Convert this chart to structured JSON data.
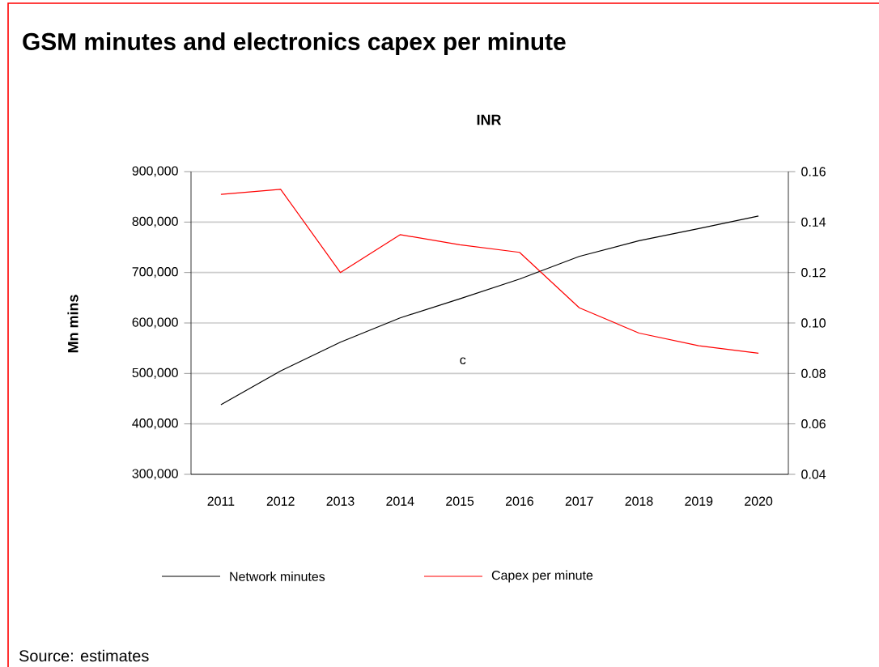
{
  "chart_data": {
    "type": "line",
    "title": "GSM minutes and electronics capex per minute",
    "subtitle": "INR",
    "ylabel": "Mn mins",
    "annotations": [
      "c",
      "Source: estimates"
    ],
    "categories": [
      "2011",
      "2012",
      "2013",
      "2014",
      "2015",
      "2016",
      "2017",
      "2018",
      "2019",
      "2020"
    ],
    "series": [
      {
        "name": "Network minutes",
        "color": "#000000",
        "values": [
          438000,
          505000,
          562000,
          610000,
          648000,
          687000,
          732000,
          763000,
          787000,
          812000
        ]
      },
      {
        "name": "Capex per minute",
        "color": "#ff0000",
        "axis": "y2",
        "values": [
          0.151,
          0.153,
          0.12,
          0.135,
          0.131,
          0.128,
          0.106,
          0.096,
          0.091,
          0.088
        ]
      }
    ],
    "ylim": [
      300000,
      900000
    ],
    "yticks": [
      {
        "value": 300000,
        "label": "300,000"
      },
      {
        "value": 400000,
        "label": "400,000"
      },
      {
        "value": 500000,
        "label": "500,000"
      },
      {
        "value": 600000,
        "label": "600,000"
      },
      {
        "value": 700000,
        "label": "700,000"
      },
      {
        "value": 800000,
        "label": "800,000"
      },
      {
        "value": 900000,
        "label": "900,000"
      }
    ],
    "y2lim": [
      0.04,
      0.16
    ],
    "y2ticks": [
      {
        "value": 0.04,
        "label": "0.04"
      },
      {
        "value": 0.06,
        "label": "0.06"
      },
      {
        "value": 0.08,
        "label": "0.08"
      },
      {
        "value": 0.1,
        "label": "0.10"
      },
      {
        "value": 0.12,
        "label": "0.12"
      },
      {
        "value": 0.14,
        "label": "0.14"
      },
      {
        "value": 0.16,
        "label": "0.16"
      }
    ],
    "grid": "y",
    "legend": "bottom",
    "marker": "none",
    "line_style": "solid"
  }
}
